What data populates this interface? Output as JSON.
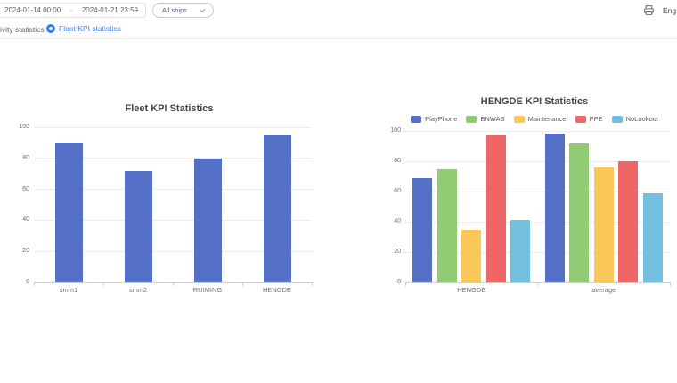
{
  "topbar": {
    "date_start": "2024-01-14 00:00",
    "date_separator": "-",
    "date_end": "2024-01-21 23:59",
    "ship_filter": "All ships",
    "language": "Eng"
  },
  "tabs": {
    "activity": {
      "label": "ivity statistics",
      "active": false
    },
    "fleet": {
      "label": "Fleet KPI statistics",
      "active": true
    }
  },
  "chart_data": [
    {
      "type": "bar",
      "title": "Fleet KPI Statistics",
      "categories": [
        "smm1",
        "smm2",
        "RUIMING",
        "HENGDE"
      ],
      "values": [
        90,
        72,
        80,
        95
      ],
      "bar_color": "#5470c6",
      "xlabel": "",
      "ylabel": "",
      "ylim": [
        0,
        100
      ],
      "yticks": [
        0,
        20,
        40,
        60,
        80,
        100
      ],
      "grid": true,
      "legend": false
    },
    {
      "type": "bar",
      "title": "HENGDE KPI Statistics",
      "categories": [
        "HENGDE",
        "average"
      ],
      "series": [
        {
          "name": "PlayPhone",
          "color": "#5470c6",
          "values": [
            69,
            98
          ]
        },
        {
          "name": "BNWAS",
          "color": "#91cc75",
          "values": [
            75,
            92
          ]
        },
        {
          "name": "Maintenance",
          "color": "#fac858",
          "values": [
            35,
            76
          ]
        },
        {
          "name": "PPE",
          "color": "#ee6666",
          "values": [
            97,
            80
          ]
        },
        {
          "name": "NoLookout",
          "color": "#73c0de",
          "values": [
            41,
            59
          ]
        }
      ],
      "xlabel": "",
      "ylabel": "",
      "ylim": [
        0,
        100
      ],
      "yticks": [
        0,
        20,
        40,
        60,
        80,
        100
      ],
      "grid": true,
      "legend_position": "top"
    }
  ]
}
